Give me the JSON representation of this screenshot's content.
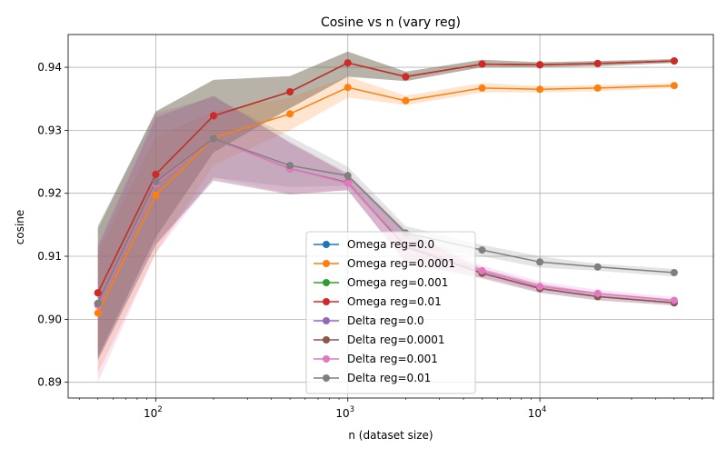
{
  "chart_data": {
    "type": "line",
    "title": "Cosine vs n (vary reg)",
    "xlabel": "n (dataset size)",
    "ylabel": "cosine",
    "xscale": "log",
    "xlim": [
      35,
      80000
    ],
    "ylim": [
      0.8875,
      0.9452
    ],
    "x_ticks_major": [
      {
        "value": 100,
        "base": "10",
        "exp": "2"
      },
      {
        "value": 1000,
        "base": "10",
        "exp": "3"
      },
      {
        "value": 10000,
        "base": "10",
        "exp": "4"
      }
    ],
    "y_ticks": [
      0.89,
      0.9,
      0.91,
      0.92,
      0.93,
      0.94
    ],
    "y_tick_labels": [
      "0.89",
      "0.90",
      "0.91",
      "0.92",
      "0.93",
      "0.94"
    ],
    "grid": true,
    "legend_position": "lower-center",
    "x": [
      50,
      100,
      200,
      500,
      1000,
      2000,
      5000,
      10000,
      20000,
      50000
    ],
    "series": [
      {
        "name": "Omega reg=0.0",
        "color": "#1f77b4",
        "values": [
          0.9042,
          0.923,
          0.9323,
          0.9361,
          0.9407,
          0.9385,
          0.9405,
          0.9404,
          0.9406,
          0.941
        ],
        "lower": [
          0.894,
          0.913,
          0.9265,
          0.9335,
          0.9385,
          0.9378,
          0.94,
          0.94,
          0.9402,
          0.9407
        ],
        "upper": [
          0.9145,
          0.933,
          0.938,
          0.9386,
          0.9425,
          0.9393,
          0.9412,
          0.9408,
          0.941,
          0.9413
        ]
      },
      {
        "name": "Omega reg=0.0001",
        "color": "#ff7f0e",
        "values": [
          0.901,
          0.9197,
          0.9288,
          0.9326,
          0.9368,
          0.9347,
          0.9367,
          0.9365,
          0.9367,
          0.9371
        ],
        "lower": [
          0.8915,
          0.9105,
          0.9245,
          0.93,
          0.9352,
          0.934,
          0.936,
          0.936,
          0.9362,
          0.9367
        ],
        "upper": [
          0.9105,
          0.929,
          0.933,
          0.9352,
          0.9385,
          0.9355,
          0.9375,
          0.937,
          0.9372,
          0.9375
        ]
      },
      {
        "name": "Omega reg=0.001",
        "color": "#2ca02c",
        "values": [
          0.9042,
          0.923,
          0.9323,
          0.9361,
          0.9407,
          0.9385,
          0.9405,
          0.9404,
          0.9406,
          0.941
        ],
        "lower": [
          0.894,
          0.913,
          0.9265,
          0.9335,
          0.9385,
          0.9378,
          0.94,
          0.94,
          0.9402,
          0.9407
        ],
        "upper": [
          0.9145,
          0.933,
          0.938,
          0.9386,
          0.9425,
          0.9393,
          0.9412,
          0.9408,
          0.941,
          0.9413
        ]
      },
      {
        "name": "Omega reg=0.01",
        "color": "#d62728",
        "values": [
          0.9042,
          0.923,
          0.9323,
          0.9361,
          0.9407,
          0.9385,
          0.9405,
          0.9404,
          0.9406,
          0.941
        ],
        "lower": [
          0.894,
          0.913,
          0.9265,
          0.9335,
          0.9385,
          0.9378,
          0.94,
          0.94,
          0.9402,
          0.9407
        ],
        "upper": [
          0.9145,
          0.933,
          0.938,
          0.9386,
          0.9425,
          0.9393,
          0.9412,
          0.9408,
          0.941,
          0.9413
        ]
      },
      {
        "name": "Delta reg=0.0",
        "color": "#9467bd",
        "values": [
          0.9025,
          0.9218,
          0.9287,
          0.9239,
          0.9217,
          0.9115,
          0.9073,
          0.9049,
          0.9036,
          0.9026
        ],
        "lower": [
          0.8935,
          0.9118,
          0.922,
          0.9198,
          0.9205,
          0.909,
          0.9065,
          0.9042,
          0.903,
          0.9022
        ],
        "upper": [
          0.9115,
          0.932,
          0.9355,
          0.928,
          0.923,
          0.914,
          0.908,
          0.9056,
          0.9042,
          0.903
        ]
      },
      {
        "name": "Delta reg=0.0001",
        "color": "#8c564b",
        "values": [
          0.9025,
          0.9218,
          0.9287,
          0.9239,
          0.9217,
          0.9115,
          0.9073,
          0.9049,
          0.9036,
          0.9026
        ],
        "lower": [
          0.8935,
          0.9118,
          0.922,
          0.9198,
          0.9205,
          0.909,
          0.9065,
          0.9042,
          0.903,
          0.9022
        ],
        "upper": [
          0.9115,
          0.932,
          0.9355,
          0.928,
          0.923,
          0.914,
          0.908,
          0.9056,
          0.9042,
          0.903
        ]
      },
      {
        "name": "Delta reg=0.001",
        "color": "#e377c2",
        "values": [
          0.9022,
          0.9215,
          0.9287,
          0.9239,
          0.9216,
          0.9117,
          0.9077,
          0.9052,
          0.9041,
          0.903
        ],
        "lower": [
          0.89,
          0.9105,
          0.9225,
          0.92,
          0.9205,
          0.9092,
          0.9068,
          0.9045,
          0.9035,
          0.9026
        ],
        "upper": [
          0.912,
          0.9325,
          0.935,
          0.9282,
          0.9232,
          0.9142,
          0.9085,
          0.906,
          0.9047,
          0.9035
        ]
      },
      {
        "name": "Delta reg=0.01",
        "color": "#7f7f7f",
        "values": [
          0.9025,
          0.9218,
          0.9287,
          0.9244,
          0.9228,
          0.9137,
          0.911,
          0.9091,
          0.9083,
          0.9074
        ],
        "lower": [
          0.8935,
          0.912,
          0.9225,
          0.921,
          0.9212,
          0.9115,
          0.91,
          0.9082,
          0.9077,
          0.9068
        ],
        "upper": [
          0.915,
          0.9328,
          0.9352,
          0.929,
          0.9242,
          0.9148,
          0.9118,
          0.91,
          0.9088,
          0.908
        ]
      }
    ]
  }
}
